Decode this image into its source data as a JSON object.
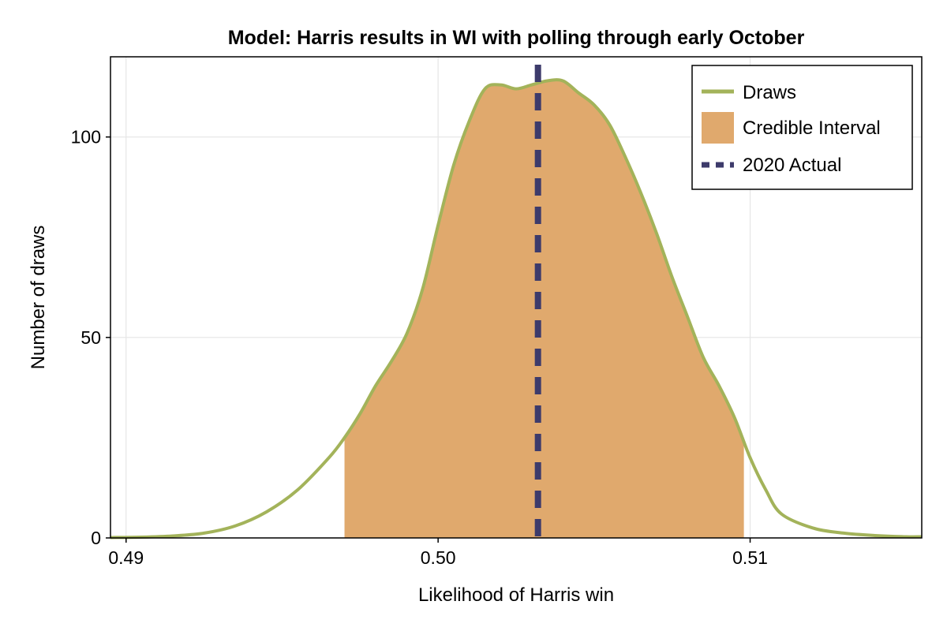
{
  "chart_data": {
    "type": "area",
    "title": "Model: Harris results in WI with polling through early October",
    "xlabel": "Likelihood of Harris win",
    "ylabel": "Number of draws",
    "xlim": [
      0.4895,
      0.5155
    ],
    "ylim": [
      0,
      120
    ],
    "x_ticks": [
      0.49,
      0.5,
      0.51
    ],
    "x_tick_labels": [
      "0.49",
      "0.50",
      "0.51"
    ],
    "y_ticks": [
      0,
      50,
      100
    ],
    "y_tick_labels": [
      "0",
      "50",
      "100"
    ],
    "grid": true,
    "legend_position": "top-right",
    "colors": {
      "draws": "#a3b35a",
      "credible_interval": "#e0a96d",
      "actual_2020": "#3d3b6b",
      "grid": "#e5e5e5"
    },
    "series": [
      {
        "name": "Draws",
        "x": [
          0.4895,
          0.4905,
          0.4915,
          0.4925,
          0.4935,
          0.4945,
          0.4955,
          0.4965,
          0.497,
          0.4975,
          0.498,
          0.4985,
          0.499,
          0.4995,
          0.5,
          0.5005,
          0.501,
          0.5015,
          0.502,
          0.5025,
          0.503,
          0.5035,
          0.504,
          0.5045,
          0.505,
          0.5055,
          0.506,
          0.5065,
          0.507,
          0.5075,
          0.508,
          0.5085,
          0.509,
          0.5095,
          0.51,
          0.5105,
          0.511,
          0.512,
          0.513,
          0.514,
          0.515,
          0.5155
        ],
        "values": [
          0.1,
          0.2,
          0.5,
          1.2,
          3,
          6.5,
          12,
          20,
          25,
          31,
          38,
          44,
          51,
          62,
          78,
          93,
          104,
          112,
          113,
          112,
          113,
          114,
          114,
          111,
          108,
          103,
          95,
          86,
          76,
          65,
          55,
          45,
          38,
          30,
          20,
          12,
          6,
          2.5,
          1.2,
          0.6,
          0.3,
          0.3
        ]
      }
    ],
    "credible_interval": {
      "name": "Credible Interval",
      "lower": 0.497,
      "upper": 0.5098
    },
    "reference_line": {
      "name": "2020 Actual",
      "x": 0.5032
    }
  }
}
